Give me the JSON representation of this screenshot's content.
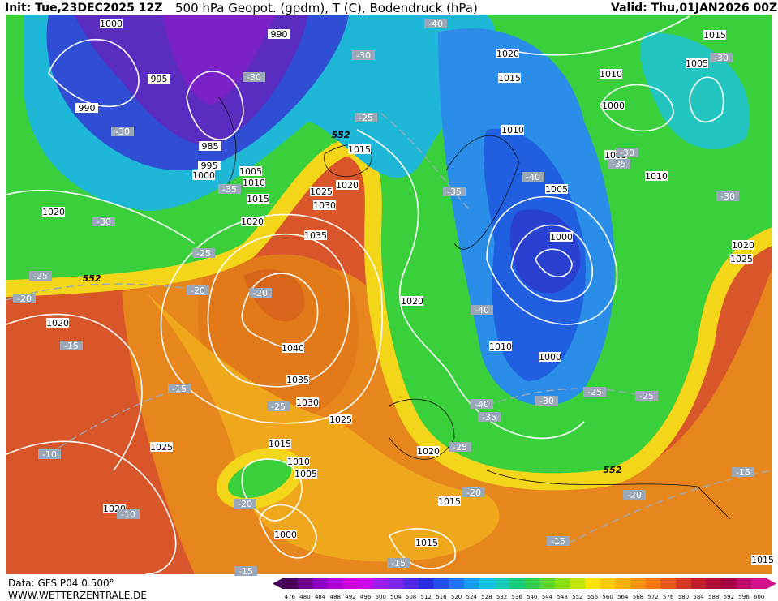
{
  "header": {
    "init": "Init: Tue,23DEC2025 12Z",
    "title": "500 hPa Geopot. (gpdm), T (C), Bodendruck (hPa)",
    "valid": "Valid: Thu,01JAN2026 00Z"
  },
  "footer": {
    "data": "Data: GFS P04 0.500°",
    "site": "WWW.WETTERZENTRALE.DE"
  },
  "legend": {
    "levels": [
      476,
      480,
      484,
      488,
      492,
      496,
      500,
      504,
      508,
      512,
      516,
      520,
      524,
      528,
      532,
      536,
      540,
      544,
      548,
      552,
      556,
      560,
      564,
      568,
      572,
      576,
      580,
      584,
      588,
      592,
      596,
      600
    ]
  },
  "map": {
    "isobar_labels": [
      1000,
      990,
      995,
      990,
      985,
      995,
      1000,
      1005,
      1010,
      1015,
      1020,
      1015,
      1020,
      1025,
      1030,
      1035,
      1040,
      1035,
      1030,
      1025,
      1025,
      1020,
      1020,
      1020,
      1015,
      1010,
      1005,
      1000,
      1015,
      1015,
      1020,
      1020,
      1010,
      1000,
      1000,
      1005,
      1010,
      1015,
      1020,
      1010,
      1000,
      1005,
      1010,
      1005,
      1015,
      1020,
      1025,
      1015
    ],
    "temperature_labels": [
      "-40",
      "-30",
      "-30",
      "-30",
      "-30",
      "-35",
      "-25",
      "-25",
      "-25",
      "-20",
      "-20",
      "-20",
      "-15",
      "-15",
      "-25",
      "-10",
      "-10",
      "-20",
      "-15",
      "-15",
      "-20",
      "-25",
      "-40",
      "-35",
      "-30",
      "-25",
      "-25",
      "-40",
      "-35",
      "-40",
      "-35",
      "-30",
      "-30",
      "-30",
      "-20",
      "-15",
      "-15"
    ],
    "height_labels": [
      552,
      552,
      552
    ]
  }
}
